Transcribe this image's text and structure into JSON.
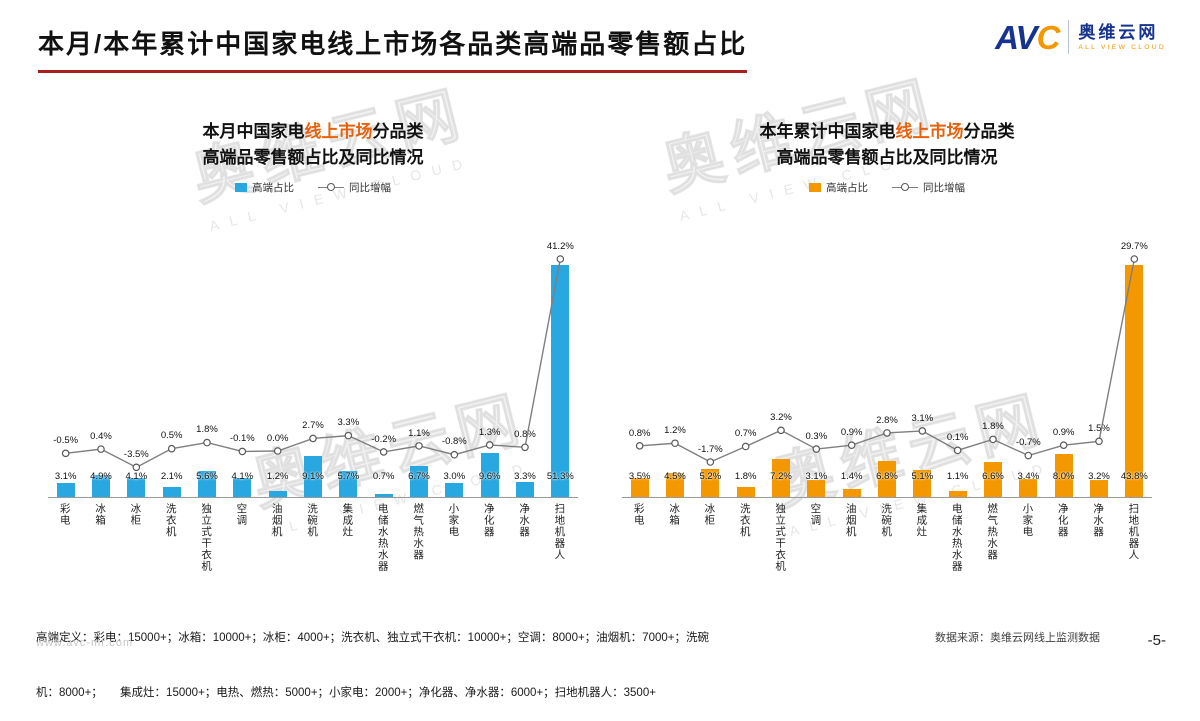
{
  "header": {
    "title": "本月/本年累计中国家电线上市场各品类高端品零售额占比",
    "underline_color": "#a8201d",
    "logo": {
      "av": "AV",
      "c": "C",
      "cn": "奥维云网",
      "en": "ALL VIEW CLOUD"
    }
  },
  "watermark": {
    "text": "奥维云网",
    "sub": "ALL VIEW CLOUD"
  },
  "chart_data": [
    {
      "type": "bar",
      "title_prefix": "本月中国家电",
      "title_highlight": "线上市场",
      "title_suffix": "分品类",
      "title_line2": "高端品零售额占比及同比情况",
      "highlight_color": "#e8620c",
      "unit": "%",
      "legend_position": "top",
      "grid": false,
      "categories": [
        "彩电",
        "冰箱",
        "冰柜",
        "洗衣机",
        "独立式干衣机",
        "空调",
        "油烟机",
        "洗碗机",
        "集成灶",
        "电储水热水器",
        "燃气热水器",
        "小家电",
        "净化器",
        "净水器",
        "扫地机器人"
      ],
      "series": [
        {
          "name": "高端占比",
          "type": "bar",
          "color": "#29a7e0",
          "values": [
            3.1,
            4.9,
            4.1,
            2.1,
            5.6,
            4.1,
            1.2,
            9.1,
            5.7,
            0.7,
            6.7,
            3.0,
            9.6,
            3.3,
            51.3
          ]
        },
        {
          "name": "同比增幅",
          "type": "line",
          "color": "#7f7f7f",
          "values": [
            -0.5,
            0.4,
            -3.5,
            0.5,
            1.8,
            -0.1,
            0.0,
            2.7,
            3.3,
            -0.2,
            1.1,
            -0.8,
            1.3,
            0.8,
            41.2
          ]
        }
      ]
    },
    {
      "type": "bar",
      "title_prefix": "本年累计中国家电",
      "title_highlight": "线上市场",
      "title_suffix": "分品类",
      "title_line2": "高端品零售额占比及同比情况",
      "highlight_color": "#e8620c",
      "unit": "%",
      "legend_position": "top",
      "grid": false,
      "categories": [
        "彩电",
        "冰箱",
        "冰柜",
        "洗衣机",
        "独立式干衣机",
        "空调",
        "油烟机",
        "洗碗机",
        "集成灶",
        "电储水热水器",
        "燃气热水器",
        "小家电",
        "净化器",
        "净水器",
        "扫地机器人"
      ],
      "series": [
        {
          "name": "高端占比",
          "type": "bar",
          "color": "#f39800",
          "values": [
            3.5,
            4.5,
            5.2,
            1.8,
            7.2,
            3.1,
            1.4,
            6.8,
            5.1,
            1.1,
            6.6,
            3.4,
            8.0,
            3.2,
            43.8
          ]
        },
        {
          "name": "同比增幅",
          "type": "line",
          "color": "#7f7f7f",
          "values": [
            0.8,
            1.2,
            -1.7,
            0.7,
            3.2,
            0.3,
            0.9,
            2.8,
            3.1,
            0.1,
            1.8,
            -0.7,
            0.9,
            1.5,
            29.7
          ]
        }
      ]
    }
  ],
  "footnote_lines": [
    "高端定义：彩电：15000+；冰箱：10000+；冰柜：4000+；洗衣机、独立式干衣机：10000+；空调：8000+；油烟机：7000+；洗碗",
    "机：8000+；　　集成灶：15000+；电热、燃热：5000+；小家电：2000+；净化器、净水器：6000+；扫地机器人：3500+"
  ],
  "footer": {
    "url": "www.avc-mr.com",
    "source": "数据来源：奥维云网线上监测数据",
    "page": "-5-"
  }
}
